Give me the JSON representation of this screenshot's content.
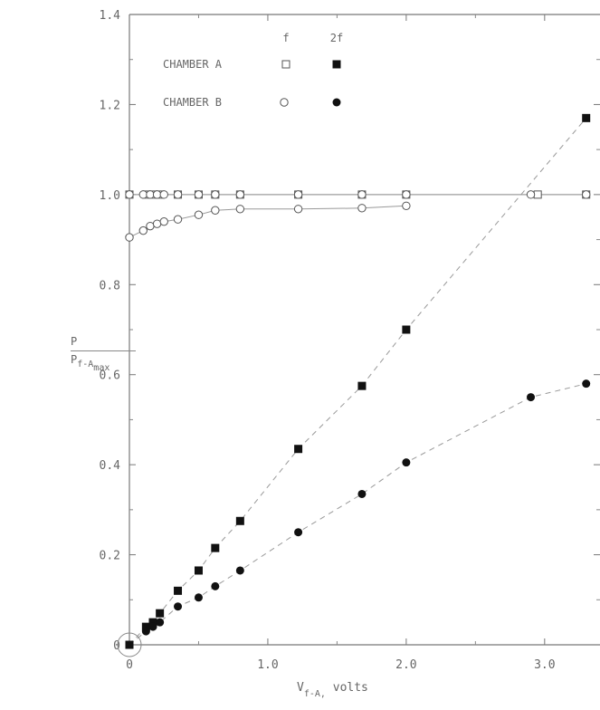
{
  "chart_data": {
    "type": "scatter",
    "title": "",
    "xlabel": {
      "main": "V",
      "sub": "f-A,",
      "unit": "volts"
    },
    "ylabel": {
      "numerator": "P",
      "denominator_main": "P",
      "denominator_sub": "f-A",
      "denominator_subsub": "max"
    },
    "xlim": [
      0,
      3.4
    ],
    "ylim": [
      0,
      1.4
    ],
    "x_ticks": [
      "0",
      "1.0",
      "2.0",
      "3.0"
    ],
    "y_ticks": [
      "0",
      "0.2",
      "0.4",
      "0.6",
      "0.8",
      "1.0",
      "1.2",
      "1.4"
    ],
    "legend": {
      "position": "top-left",
      "col_headers": [
        "f",
        "2f"
      ],
      "rows": [
        "CHAMBER A",
        "CHAMBER B"
      ]
    },
    "series": [
      {
        "name": "CHAMBER A f",
        "marker": "open-square",
        "connect": "solid",
        "x": [
          0.0,
          0.12,
          0.17,
          0.22,
          0.35,
          0.5,
          0.62,
          0.8,
          1.22,
          1.68,
          2.0,
          2.95,
          3.3
        ],
        "y": [
          1.0,
          1.0,
          1.0,
          1.0,
          1.0,
          1.0,
          1.0,
          1.0,
          1.0,
          1.0,
          1.0,
          1.0,
          1.0
        ]
      },
      {
        "name": "CHAMBER B f",
        "marker": "open-circle",
        "connect": "solid",
        "x": [
          0.0,
          0.1,
          0.15,
          0.2,
          0.25,
          0.35,
          0.5,
          0.62,
          0.8,
          1.22,
          1.68,
          2.0,
          2.9,
          3.3
        ],
        "y": [
          1.0,
          1.0,
          1.0,
          1.0,
          1.0,
          1.0,
          1.0,
          1.0,
          1.0,
          1.0,
          1.0,
          1.0,
          1.0,
          1.0
        ]
      },
      {
        "name": "CHAMBER B f (lower curve)",
        "marker": "open-circle",
        "connect": "solid",
        "x": [
          0.0,
          0.1,
          0.15,
          0.2,
          0.25,
          0.35,
          0.5,
          0.62,
          0.8,
          1.22,
          1.68,
          2.0
        ],
        "y": [
          0.905,
          0.92,
          0.93,
          0.935,
          0.94,
          0.945,
          0.955,
          0.965,
          0.968,
          0.968,
          0.97,
          0.975
        ]
      },
      {
        "name": "CHAMBER A 2f",
        "marker": "filled-square",
        "connect": "dashed",
        "x": [
          0.0,
          0.12,
          0.17,
          0.22,
          0.35,
          0.5,
          0.62,
          0.8,
          1.22,
          1.68,
          2.0,
          3.3
        ],
        "y": [
          0.0,
          0.04,
          0.05,
          0.07,
          0.12,
          0.165,
          0.215,
          0.275,
          0.435,
          0.575,
          0.7,
          1.17
        ]
      },
      {
        "name": "CHAMBER B 2f",
        "marker": "filled-circle",
        "connect": "dashed",
        "x": [
          0.0,
          0.12,
          0.17,
          0.22,
          0.35,
          0.5,
          0.62,
          0.8,
          1.22,
          1.68,
          2.0,
          2.9,
          3.3
        ],
        "y": [
          0.0,
          0.03,
          0.04,
          0.05,
          0.085,
          0.105,
          0.13,
          0.165,
          0.25,
          0.335,
          0.405,
          0.55,
          0.58
        ]
      }
    ]
  }
}
